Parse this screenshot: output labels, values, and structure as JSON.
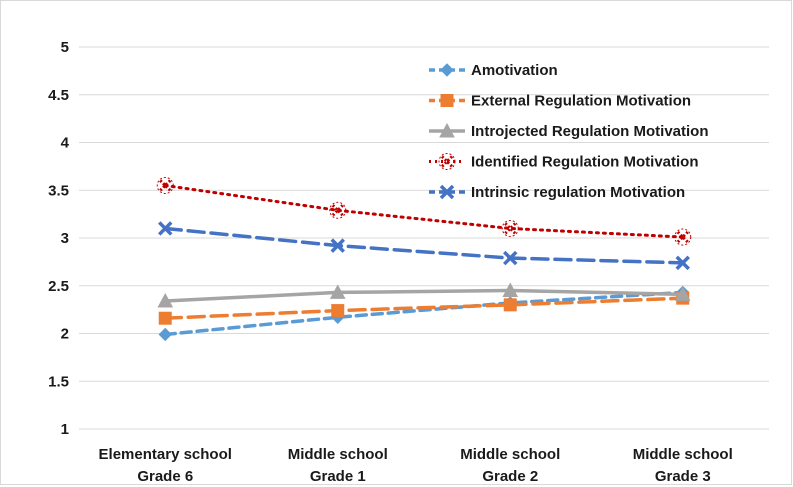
{
  "chart_data": {
    "type": "line",
    "title": "",
    "xlabel": "",
    "ylabel": "",
    "categories": [
      [
        "Elementary school",
        "Grade 6"
      ],
      [
        "Middle school",
        "Grade 1"
      ],
      [
        "Middle school",
        "Grade 2"
      ],
      [
        "Middle school",
        "Grade 3"
      ]
    ],
    "y_ticks": [
      "1",
      "1.5",
      "2",
      "2.5",
      "3",
      "3.5",
      "4",
      "4.5",
      "5"
    ],
    "ylim": [
      1,
      5
    ],
    "grid": true,
    "legend_position": "top-right",
    "series": [
      {
        "name": "Amotivation",
        "values": [
          1.99,
          2.17,
          2.32,
          2.43
        ],
        "color": "#5b9bd5",
        "marker": "diamond",
        "dash": "dash"
      },
      {
        "name": "External Regulation Motivation",
        "values": [
          2.16,
          2.24,
          2.3,
          2.37
        ],
        "color": "#ed7d31",
        "marker": "square",
        "dash": "longdash"
      },
      {
        "name": "Introjected Regulation Motivation",
        "values": [
          2.34,
          2.43,
          2.45,
          2.41
        ],
        "color": "#a5a5a5",
        "marker": "triangle",
        "dash": "solid"
      },
      {
        "name": "Identified Regulation Motivation",
        "values": [
          3.55,
          3.29,
          3.1,
          3.01
        ],
        "color": "#c00000",
        "marker": "x-circle",
        "dash": "dot"
      },
      {
        "name": "Intrinsic  regulation Motivation",
        "values": [
          3.1,
          2.92,
          2.79,
          2.74
        ],
        "color": "#4472c4",
        "marker": "x",
        "dash": "longdash"
      }
    ]
  }
}
